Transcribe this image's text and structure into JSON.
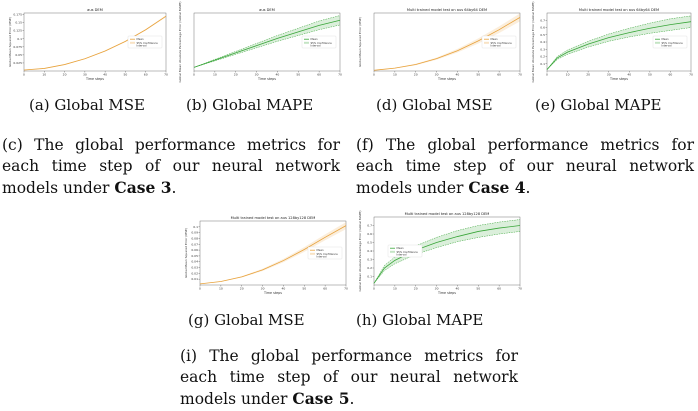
{
  "chart_data": [
    {
      "id": "a",
      "type": "line",
      "title": "aus DEM",
      "xlabel": "Time steps",
      "ylabel": "Global Mean Squared Error (MSE)",
      "xlim": [
        0,
        70
      ],
      "ylim": [
        0,
        0.18
      ],
      "xticks": [
        0,
        10,
        20,
        30,
        40,
        50,
        60,
        70
      ],
      "yticks": [
        0.025,
        0.05,
        0.075,
        0.1,
        0.125,
        0.15,
        0.175
      ],
      "legend": "center-right",
      "series": [
        {
          "name": "Mean",
          "color": "#e8a33c",
          "style": "solid",
          "x": [
            0,
            10,
            20,
            30,
            40,
            50,
            60,
            70
          ],
          "y": [
            0.003,
            0.008,
            0.02,
            0.038,
            0.062,
            0.092,
            0.128,
            0.17
          ]
        },
        {
          "name": "95% Confidence Interval",
          "color": "#e8a33c",
          "style": "band",
          "x": [
            0,
            10,
            20,
            30,
            40,
            50,
            60,
            70
          ],
          "lower": [
            0.003,
            0.0075,
            0.019,
            0.037,
            0.06,
            0.09,
            0.126,
            0.167
          ],
          "upper": [
            0.003,
            0.0085,
            0.021,
            0.039,
            0.064,
            0.094,
            0.13,
            0.173
          ]
        }
      ]
    },
    {
      "id": "b",
      "type": "line",
      "title": "aus DEM",
      "xlabel": "Time steps",
      "ylabel": "Global Mean Absolute Percentage Error (Global MAPE)",
      "xlim": [
        0,
        70
      ],
      "ylim": [
        0,
        0.16
      ],
      "xticks": [
        0,
        10,
        20,
        30,
        40,
        50,
        60,
        70
      ],
      "yticks": [],
      "legend": "center-right",
      "series": [
        {
          "name": "Mean",
          "color": "#3aa63a",
          "style": "solid",
          "x": [
            0,
            10,
            20,
            30,
            40,
            50,
            60,
            70
          ],
          "y": [
            0.01,
            0.03,
            0.05,
            0.07,
            0.09,
            0.108,
            0.126,
            0.14
          ]
        },
        {
          "name": "95% Confidence Interval",
          "color": "#3aa63a",
          "style": "dashed-band",
          "x": [
            0,
            10,
            20,
            30,
            40,
            50,
            60,
            70
          ],
          "lower": [
            0.01,
            0.028,
            0.046,
            0.064,
            0.082,
            0.098,
            0.114,
            0.127
          ],
          "upper": [
            0.01,
            0.032,
            0.054,
            0.076,
            0.098,
            0.118,
            0.138,
            0.153
          ]
        }
      ]
    },
    {
      "id": "d",
      "type": "line",
      "title": "Multi trained model test on aus 64by64 DEM",
      "xlabel": "Time steps",
      "ylabel": "Global Mean Squared Error (MSE)",
      "xlim": [
        0,
        70
      ],
      "ylim": [
        0,
        0.16
      ],
      "xticks": [
        0,
        10,
        20,
        30,
        40,
        50,
        60,
        70
      ],
      "yticks": [],
      "legend": "center-right",
      "series": [
        {
          "name": "Mean",
          "color": "#e8a33c",
          "style": "solid",
          "x": [
            0,
            10,
            20,
            30,
            40,
            50,
            60,
            70
          ],
          "y": [
            0.002,
            0.008,
            0.018,
            0.034,
            0.056,
            0.083,
            0.114,
            0.148
          ]
        },
        {
          "name": "95% Confidence Interval",
          "color": "#e8a33c",
          "style": "band",
          "x": [
            0,
            10,
            20,
            30,
            40,
            50,
            60,
            70
          ],
          "lower": [
            0.002,
            0.007,
            0.016,
            0.031,
            0.051,
            0.076,
            0.105,
            0.137
          ],
          "upper": [
            0.002,
            0.009,
            0.02,
            0.037,
            0.061,
            0.09,
            0.123,
            0.159
          ]
        }
      ]
    },
    {
      "id": "e",
      "type": "line",
      "title": "Multi trained model test on aus 64by64 DEM",
      "xlabel": "Time steps",
      "ylabel": "Global Mean Absolute Percentage Error (Global MAPE)",
      "xlim": [
        0,
        70
      ],
      "ylim": [
        0,
        0.8
      ],
      "xticks": [
        0,
        10,
        20,
        30,
        40,
        50,
        60,
        70
      ],
      "yticks": [
        0.1,
        0.2,
        0.3,
        0.4,
        0.5,
        0.6,
        0.7
      ],
      "legend": "center-right",
      "series": [
        {
          "name": "Mean",
          "color": "#3aa63a",
          "style": "solid",
          "x": [
            0,
            5,
            10,
            20,
            30,
            40,
            50,
            60,
            70
          ],
          "y": [
            0.02,
            0.18,
            0.26,
            0.37,
            0.46,
            0.53,
            0.59,
            0.64,
            0.68
          ]
        },
        {
          "name": "95% Confidence Interval",
          "color": "#3aa63a",
          "style": "dashed-band",
          "x": [
            0,
            5,
            10,
            20,
            30,
            40,
            50,
            60,
            70
          ],
          "lower": [
            0.02,
            0.16,
            0.23,
            0.33,
            0.41,
            0.47,
            0.52,
            0.56,
            0.6
          ],
          "upper": [
            0.02,
            0.2,
            0.29,
            0.41,
            0.51,
            0.59,
            0.66,
            0.72,
            0.76
          ]
        }
      ]
    },
    {
      "id": "g",
      "type": "line",
      "title": "Multi trained model test on aus 128by128 DEM",
      "xlabel": "Time steps",
      "ylabel": "Global Mean Squared Error (MSE)",
      "xlim": [
        0,
        70
      ],
      "ylim": [
        0,
        0.11
      ],
      "xticks": [
        0,
        10,
        20,
        30,
        40,
        50,
        60,
        70
      ],
      "yticks": [
        0.01,
        0.02,
        0.03,
        0.04,
        0.05,
        0.06,
        0.07,
        0.08,
        0.09,
        0.1
      ],
      "legend": "center-right",
      "series": [
        {
          "name": "Mean",
          "color": "#e8a33c",
          "style": "solid",
          "x": [
            0,
            10,
            20,
            30,
            40,
            50,
            60,
            70
          ],
          "y": [
            0.002,
            0.006,
            0.014,
            0.026,
            0.042,
            0.061,
            0.082,
            0.102
          ]
        },
        {
          "name": "95% Confidence Interval",
          "color": "#e8a33c",
          "style": "band",
          "x": [
            0,
            10,
            20,
            30,
            40,
            50,
            60,
            70
          ],
          "lower": [
            0.002,
            0.0055,
            0.013,
            0.024,
            0.039,
            0.057,
            0.077,
            0.096
          ],
          "upper": [
            0.002,
            0.0065,
            0.015,
            0.028,
            0.045,
            0.065,
            0.087,
            0.108
          ]
        }
      ]
    },
    {
      "id": "h",
      "type": "line",
      "title": "Multi trained model test on aus 128by128 DEM",
      "xlabel": "Time steps",
      "ylabel": "Global Mean Absolute Percentage Error (Global MAPE)",
      "xlim": [
        0,
        70
      ],
      "ylim": [
        0,
        0.8
      ],
      "xticks": [
        0,
        10,
        20,
        30,
        40,
        50,
        60,
        70
      ],
      "yticks": [
        0.1,
        0.2,
        0.3,
        0.4,
        0.5,
        0.6,
        0.7
      ],
      "legend": "center-left",
      "series": [
        {
          "name": "Mean",
          "color": "#3aa63a",
          "style": "solid",
          "x": [
            0,
            5,
            10,
            20,
            30,
            40,
            50,
            60,
            70
          ],
          "y": [
            0.02,
            0.2,
            0.29,
            0.41,
            0.5,
            0.57,
            0.63,
            0.67,
            0.7
          ]
        },
        {
          "name": "95% Confidence Interval",
          "color": "#3aa63a",
          "style": "dashed-band",
          "x": [
            0,
            5,
            10,
            20,
            30,
            40,
            50,
            60,
            70
          ],
          "lower": [
            0.02,
            0.17,
            0.25,
            0.36,
            0.44,
            0.51,
            0.56,
            0.6,
            0.63
          ],
          "upper": [
            0.02,
            0.23,
            0.33,
            0.46,
            0.56,
            0.64,
            0.7,
            0.74,
            0.77
          ]
        }
      ]
    }
  ],
  "captions": {
    "a": "(a) Global MSE",
    "b": "(b) Global MAPE",
    "d": "(d) Global MSE",
    "e": "(e) Global MAPE",
    "g": "(g) Global MSE",
    "h": "(h) Global MAPE",
    "c_pre": "(c) The global performance metrics for each time step of our neural network models under ",
    "c_case": "Case 3",
    "f_pre": "(f) The global performance metrics for each time step of our neural network models under ",
    "f_case": "Case 4",
    "i_pre": "(i) The global performance metrics for each time step of our neural network models under ",
    "i_case": "Case 5",
    "period": "."
  },
  "captions_lines": {
    "c": [
      "(c) The global performance metrics for",
      "each time step of our neural network",
      "models under "
    ],
    "f": [
      "(f) The global performance metrics for",
      "each time step of our neural network",
      "models under "
    ],
    "i": [
      "(i) The global performance metrics for",
      "each time step of our neural network",
      "models under "
    ]
  }
}
